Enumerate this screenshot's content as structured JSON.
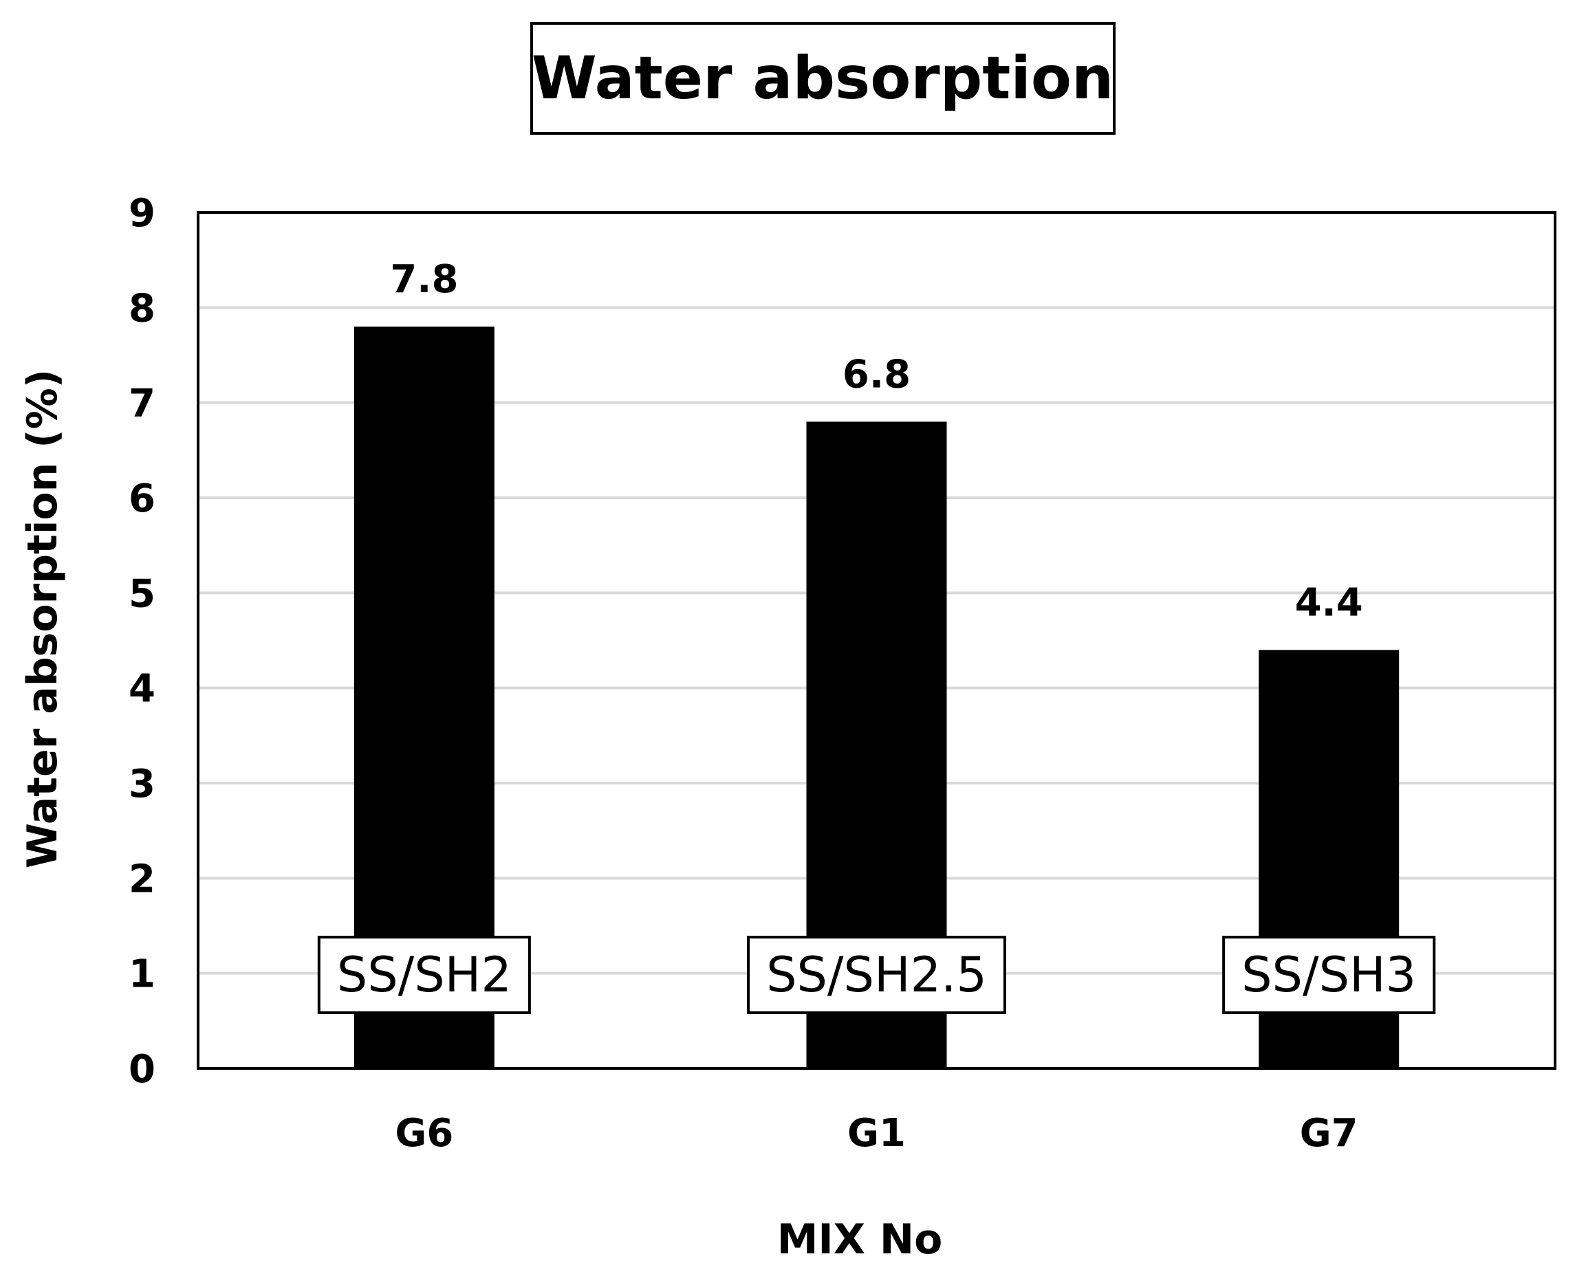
{
  "chart_data": {
    "type": "bar",
    "title": "Water absorption",
    "xlabel": "MIX No",
    "ylabel": "Water absorption (%)",
    "categories": [
      "G6",
      "G1",
      "G7"
    ],
    "values": [
      7.8,
      6.8,
      4.4
    ],
    "data_labels": [
      "7.8",
      "6.8",
      "4.4"
    ],
    "annotations": [
      "SS/SH2",
      "SS/SH2.5",
      "SS/SH3"
    ],
    "ylim": [
      0,
      9
    ],
    "yticks": [
      0,
      1,
      2,
      3,
      4,
      5,
      6,
      7,
      8,
      9
    ],
    "grid": true,
    "bar_color": "#000000",
    "grid_color": "#d9d9d9"
  }
}
